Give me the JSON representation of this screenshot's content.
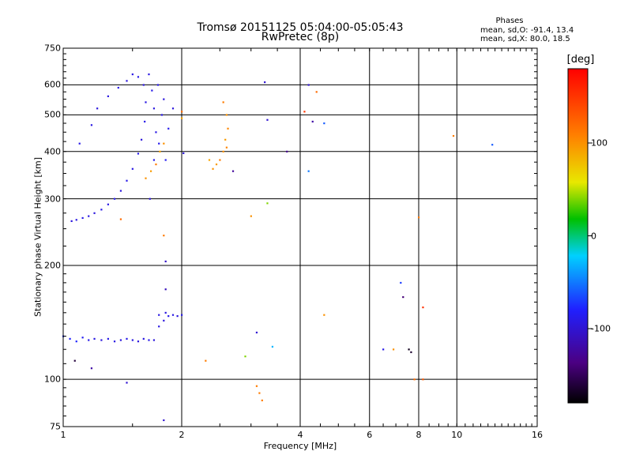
{
  "title": "Tromsø 20151125 05:04:00-05:05:43",
  "subtitle": "RwPretec (8p)",
  "phases": {
    "title": "Phases",
    "line_o": "mean, sd,O: -91.4, 13.4",
    "line_x": "mean, sd,X: 80.0, 18.5"
  },
  "colorbar": {
    "unit": "[deg]",
    "tick_labels": [
      "100",
      "0",
      "-100"
    ],
    "tick_values": [
      100,
      0,
      -100
    ],
    "range": [
      -180,
      180
    ],
    "colors": [
      "#ffffff",
      "#000000",
      "#4b0082",
      "#2020ff",
      "#00d0ff",
      "#00c000",
      "#e8e800",
      "#ff8000",
      "#ff0000"
    ]
  },
  "chart_data": {
    "type": "scatter",
    "title": "Tromsø 20151125 05:04:00-05:05:43",
    "subtitle": "RwPretec (8p)",
    "xlabel": "Frequency [MHz]",
    "ylabel": "Stationary phase Virtual Height [km]",
    "xscale": "log",
    "yscale": "log",
    "xlim": [
      1,
      16
    ],
    "ylim": [
      75,
      750
    ],
    "xticks": [
      1,
      2,
      4,
      6,
      8,
      10,
      16
    ],
    "xtick_labels": [
      "1",
      "2",
      "4",
      "6",
      "8",
      "10",
      "16"
    ],
    "yticks": [
      75,
      100,
      200,
      300,
      400,
      500,
      600,
      750
    ],
    "ytick_labels": [
      "75",
      "100",
      "200",
      "300",
      "400",
      "500",
      "600",
      "750"
    ],
    "grid": true,
    "color_scale": {
      "quantity": "phase",
      "unit": "deg",
      "min": -180,
      "max": 180
    },
    "series": [
      {
        "points": [
          [
            1.05,
            262,
            -95
          ],
          [
            1.08,
            264,
            -92
          ],
          [
            1.12,
            267,
            -90
          ],
          [
            1.16,
            270,
            -93
          ],
          [
            1.2,
            275,
            -95
          ],
          [
            1.25,
            281,
            -90
          ],
          [
            1.3,
            290,
            -92
          ],
          [
            1.35,
            300,
            -88
          ],
          [
            1.4,
            315,
            -95
          ],
          [
            1.45,
            335,
            -90
          ],
          [
            1.5,
            360,
            -92
          ],
          [
            1.55,
            395,
            -88
          ],
          [
            1.58,
            430,
            -95
          ],
          [
            1.61,
            480,
            -90
          ],
          [
            1.62,
            540,
            -92
          ],
          [
            1.6,
            600,
            -95
          ],
          [
            1.55,
            630,
            -90
          ],
          [
            1.5,
            640,
            -92
          ],
          [
            1.45,
            615,
            -95
          ],
          [
            1.38,
            590,
            -90
          ],
          [
            1.3,
            560,
            -93
          ],
          [
            1.22,
            520,
            -95
          ],
          [
            1.1,
            420,
            -90
          ],
          [
            1.18,
            470,
            -92
          ],
          [
            1.66,
            300,
            -95
          ],
          [
            1.7,
            380,
            -90
          ],
          [
            1.72,
            450,
            -92
          ],
          [
            1.7,
            520,
            -94
          ],
          [
            1.68,
            580,
            -90
          ],
          [
            1.75,
            420,
            -88
          ],
          [
            1.78,
            500,
            -92
          ],
          [
            1.8,
            550,
            -95
          ],
          [
            1.65,
            640,
            -92
          ],
          [
            1.74,
            600,
            -90
          ],
          [
            1.82,
            380,
            -85
          ],
          [
            1.85,
            460,
            -88
          ],
          [
            1.9,
            520,
            -95
          ],
          [
            1.62,
            340,
            100
          ],
          [
            1.67,
            355,
            95
          ],
          [
            1.72,
            370,
            110
          ],
          [
            1.76,
            400,
            90
          ],
          [
            1.8,
            420,
            100
          ]
        ]
      },
      {
        "points": [
          [
            1.0,
            130,
            -75
          ],
          [
            1.04,
            128,
            -80
          ],
          [
            1.08,
            126,
            -78
          ],
          [
            1.12,
            129,
            -85
          ],
          [
            1.16,
            127,
            -90
          ],
          [
            1.2,
            128,
            -92
          ],
          [
            1.25,
            127,
            -95
          ],
          [
            1.3,
            128,
            -90
          ],
          [
            1.35,
            126,
            -92
          ],
          [
            1.4,
            127,
            -95
          ],
          [
            1.45,
            128,
            -90
          ],
          [
            1.5,
            127,
            -92
          ],
          [
            1.55,
            126,
            -95
          ],
          [
            1.6,
            128,
            -93
          ],
          [
            1.65,
            127,
            -90
          ],
          [
            1.7,
            127,
            -95
          ],
          [
            1.75,
            138,
            -92
          ],
          [
            1.8,
            143,
            -95
          ],
          [
            1.85,
            147,
            -90
          ],
          [
            1.9,
            148,
            -92
          ],
          [
            1.95,
            147,
            -95
          ],
          [
            2.0,
            148,
            -90
          ],
          [
            1.75,
            148,
            -92
          ],
          [
            1.82,
            150,
            -94
          ]
        ]
      },
      {
        "points": [
          [
            2.55,
            540,
            110
          ],
          [
            2.6,
            500,
            100
          ],
          [
            2.62,
            460,
            105
          ],
          [
            2.58,
            430,
            95
          ],
          [
            2.55,
            400,
            100
          ],
          [
            2.5,
            380,
            110
          ],
          [
            2.45,
            370,
            95
          ],
          [
            2.4,
            360,
            100
          ],
          [
            2.35,
            380,
            90
          ],
          [
            2.6,
            410,
            105
          ]
        ]
      },
      {
        "points": [
          [
            1.18,
            107,
            -120
          ],
          [
            1.07,
            112,
            -160
          ],
          [
            1.45,
            98,
            -100
          ],
          [
            1.8,
            78,
            -100
          ],
          [
            1.82,
            173,
            -110
          ],
          [
            1.82,
            205,
            -105
          ],
          [
            2.02,
            396,
            -95
          ],
          [
            2.7,
            355,
            -125
          ],
          [
            3.0,
            270,
            100
          ],
          [
            3.3,
            292,
            40
          ],
          [
            3.25,
            610,
            -100
          ],
          [
            3.3,
            485,
            -100
          ],
          [
            3.7,
            400,
            -130
          ],
          [
            4.2,
            600,
            -100
          ],
          [
            4.2,
            355,
            -50
          ],
          [
            4.3,
            480,
            -120
          ],
          [
            4.6,
            475,
            -60
          ],
          [
            4.1,
            510,
            150
          ],
          [
            4.4,
            575,
            120
          ],
          [
            3.4,
            122,
            -30
          ],
          [
            3.1,
            133,
            -100
          ],
          [
            2.9,
            115,
            40
          ],
          [
            2.3,
            112,
            110
          ],
          [
            1.8,
            240,
            110
          ],
          [
            1.4,
            265,
            120
          ],
          [
            3.1,
            96,
            110
          ],
          [
            3.15,
            92,
            110
          ],
          [
            3.2,
            88,
            110
          ],
          [
            4.6,
            148,
            100
          ],
          [
            6.5,
            120,
            -90
          ],
          [
            6.9,
            120,
            100
          ],
          [
            7.2,
            180,
            -70
          ],
          [
            7.3,
            165,
            -140
          ],
          [
            7.55,
            120,
            -170
          ],
          [
            7.65,
            118,
            -165
          ],
          [
            7.8,
            100,
            120
          ],
          [
            8.2,
            100,
            130
          ],
          [
            8.2,
            155,
            150
          ],
          [
            8.0,
            268,
            110
          ],
          [
            9.8,
            440,
            110
          ],
          [
            12.3,
            417,
            -60
          ],
          [
            2.0,
            490,
            90
          ],
          [
            2.0,
            510,
            120
          ]
        ]
      }
    ]
  }
}
